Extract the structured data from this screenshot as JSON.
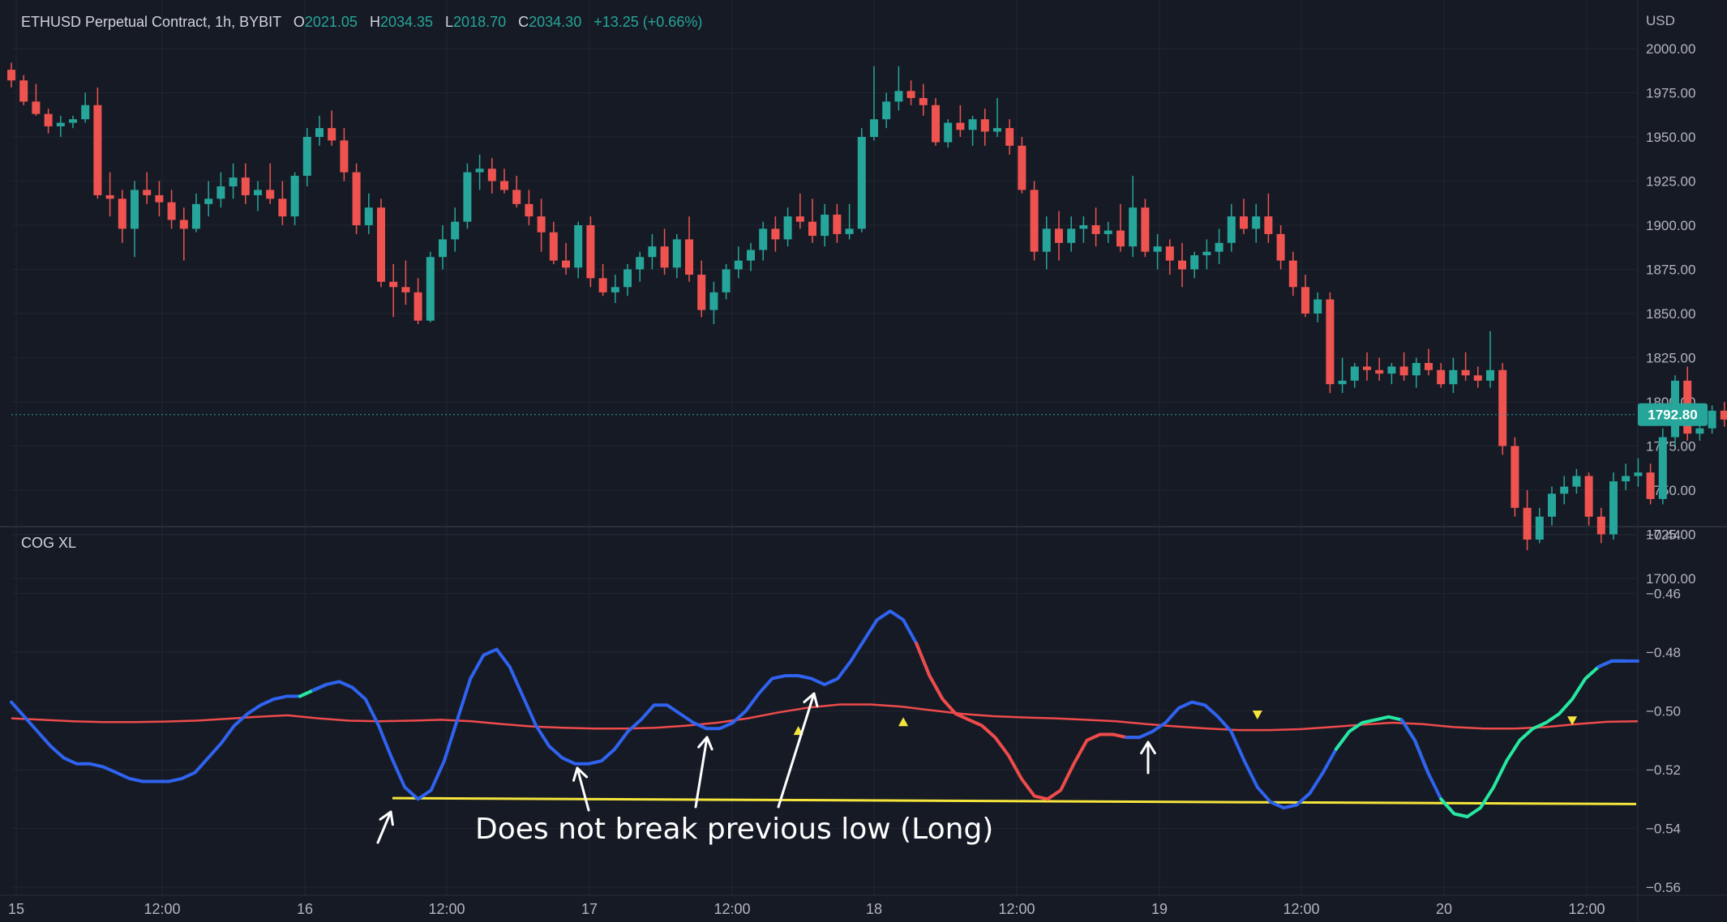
{
  "header": {
    "symbol": "ETHUSD Perpetual Contract, 1h, BYBIT",
    "o_label": "O",
    "o": "2021.05",
    "h_label": "H",
    "h": "2034.35",
    "l_label": "L",
    "l": "2018.70",
    "c_label": "C",
    "c": "2034.30",
    "change": "+13.25 (+0.66%)"
  },
  "indicator": {
    "title": "COG XL"
  },
  "annotation": "Does not break previous low (Long)",
  "colors": {
    "background": "#161a25",
    "grid": "#212531",
    "text": "#b2b5be",
    "up": "#26a69a",
    "down": "#ef5350",
    "cog_neutral": "#2f63f0",
    "cog_bull": "#26e8a0",
    "cog_bear": "#ef4b4b",
    "signal_line": "#ef4b4b",
    "support_line": "#f5e53b",
    "marker": "#f5e53b",
    "last_price_bg": "#26a69a"
  },
  "chart_data": [
    {
      "type": "candlestick",
      "title": "ETHUSD Perpetual Contract, 1h, BYBIT",
      "ylabel": "USD",
      "ylim": [
        1690,
        2010
      ],
      "y_ticks": [
        "2000.00",
        "1975.00",
        "1950.00",
        "1925.00",
        "1900.00",
        "1875.00",
        "1850.00",
        "1825.00",
        "1800.00",
        "1775.00",
        "1750.00",
        "1725.00",
        "1700.00"
      ],
      "last_price": "1792.80",
      "x_ticks": [
        "15",
        "12:00",
        "16",
        "12:00",
        "17",
        "12:00",
        "18",
        "12:00",
        "19",
        "12:00",
        "20",
        "12:00"
      ],
      "ohlc": [
        [
          1988,
          1992,
          1978,
          1982
        ],
        [
          1982,
          1985,
          1968,
          1970
        ],
        [
          1970,
          1980,
          1962,
          1963
        ],
        [
          1963,
          1966,
          1952,
          1956
        ],
        [
          1956,
          1962,
          1950,
          1958
        ],
        [
          1958,
          1962,
          1955,
          1960
        ],
        [
          1960,
          1975,
          1958,
          1968
        ],
        [
          1968,
          1978,
          1915,
          1917
        ],
        [
          1917,
          1930,
          1905,
          1915
        ],
        [
          1915,
          1920,
          1890,
          1898
        ],
        [
          1898,
          1925,
          1882,
          1920
        ],
        [
          1920,
          1930,
          1912,
          1917
        ],
        [
          1917,
          1925,
          1905,
          1913
        ],
        [
          1913,
          1920,
          1898,
          1903
        ],
        [
          1903,
          1910,
          1880,
          1898
        ],
        [
          1898,
          1918,
          1896,
          1912
        ],
        [
          1912,
          1925,
          1905,
          1915
        ],
        [
          1915,
          1930,
          1910,
          1922
        ],
        [
          1922,
          1935,
          1915,
          1927
        ],
        [
          1927,
          1935,
          1912,
          1917
        ],
        [
          1917,
          1925,
          1908,
          1920
        ],
        [
          1920,
          1935,
          1912,
          1915
        ],
        [
          1915,
          1925,
          1900,
          1905
        ],
        [
          1905,
          1930,
          1900,
          1928
        ],
        [
          1928,
          1955,
          1922,
          1950
        ],
        [
          1950,
          1962,
          1945,
          1955
        ],
        [
          1955,
          1965,
          1945,
          1948
        ],
        [
          1948,
          1955,
          1925,
          1930
        ],
        [
          1930,
          1935,
          1895,
          1900
        ],
        [
          1900,
          1918,
          1895,
          1910
        ],
        [
          1910,
          1915,
          1865,
          1868
        ],
        [
          1868,
          1878,
          1848,
          1865
        ],
        [
          1865,
          1880,
          1855,
          1862
        ],
        [
          1862,
          1870,
          1844,
          1846
        ],
        [
          1846,
          1885,
          1845,
          1882
        ],
        [
          1882,
          1900,
          1875,
          1892
        ],
        [
          1892,
          1910,
          1885,
          1902
        ],
        [
          1902,
          1935,
          1898,
          1930
        ],
        [
          1930,
          1940,
          1920,
          1932
        ],
        [
          1932,
          1938,
          1918,
          1925
        ],
        [
          1925,
          1932,
          1918,
          1920
        ],
        [
          1920,
          1928,
          1910,
          1912
        ],
        [
          1912,
          1920,
          1900,
          1905
        ],
        [
          1905,
          1915,
          1885,
          1896
        ],
        [
          1896,
          1902,
          1878,
          1880
        ],
        [
          1880,
          1890,
          1872,
          1876
        ],
        [
          1876,
          1902,
          1870,
          1900
        ],
        [
          1900,
          1905,
          1865,
          1870
        ],
        [
          1870,
          1878,
          1860,
          1862
        ],
        [
          1862,
          1872,
          1856,
          1865
        ],
        [
          1865,
          1878,
          1860,
          1875
        ],
        [
          1875,
          1885,
          1868,
          1882
        ],
        [
          1882,
          1895,
          1875,
          1888
        ],
        [
          1888,
          1898,
          1872,
          1876
        ],
        [
          1876,
          1895,
          1870,
          1892
        ],
        [
          1892,
          1905,
          1868,
          1872
        ],
        [
          1872,
          1880,
          1848,
          1852
        ],
        [
          1852,
          1868,
          1844,
          1862
        ],
        [
          1862,
          1878,
          1858,
          1875
        ],
        [
          1875,
          1888,
          1870,
          1880
        ],
        [
          1880,
          1890,
          1874,
          1886
        ],
        [
          1886,
          1902,
          1880,
          1898
        ],
        [
          1898,
          1905,
          1885,
          1892
        ],
        [
          1892,
          1910,
          1888,
          1905
        ],
        [
          1905,
          1918,
          1898,
          1902
        ],
        [
          1902,
          1915,
          1890,
          1894
        ],
        [
          1894,
          1912,
          1888,
          1906
        ],
        [
          1906,
          1912,
          1890,
          1895
        ],
        [
          1895,
          1912,
          1892,
          1898
        ],
        [
          1898,
          1955,
          1896,
          1950
        ],
        [
          1950,
          1990,
          1948,
          1960
        ],
        [
          1960,
          1975,
          1955,
          1970
        ],
        [
          1970,
          1990,
          1965,
          1976
        ],
        [
          1976,
          1982,
          1968,
          1972
        ],
        [
          1972,
          1980,
          1962,
          1968
        ],
        [
          1968,
          1972,
          1945,
          1947
        ],
        [
          1947,
          1960,
          1944,
          1958
        ],
        [
          1958,
          1968,
          1950,
          1954
        ],
        [
          1954,
          1962,
          1945,
          1960
        ],
        [
          1960,
          1966,
          1945,
          1953
        ],
        [
          1953,
          1972,
          1950,
          1955
        ],
        [
          1955,
          1960,
          1940,
          1945
        ],
        [
          1945,
          1950,
          1918,
          1920
        ],
        [
          1920,
          1925,
          1880,
          1885
        ],
        [
          1885,
          1905,
          1875,
          1898
        ],
        [
          1898,
          1908,
          1880,
          1890
        ],
        [
          1890,
          1905,
          1885,
          1898
        ],
        [
          1898,
          1905,
          1890,
          1900
        ],
        [
          1900,
          1910,
          1888,
          1895
        ],
        [
          1895,
          1902,
          1890,
          1897
        ],
        [
          1897,
          1912,
          1885,
          1888
        ],
        [
          1888,
          1928,
          1882,
          1910
        ],
        [
          1910,
          1915,
          1882,
          1885
        ],
        [
          1885,
          1895,
          1875,
          1888
        ],
        [
          1888,
          1892,
          1872,
          1880
        ],
        [
          1880,
          1890,
          1865,
          1875
        ],
        [
          1875,
          1885,
          1870,
          1883
        ],
        [
          1883,
          1892,
          1875,
          1885
        ],
        [
          1885,
          1898,
          1878,
          1890
        ],
        [
          1890,
          1912,
          1885,
          1905
        ],
        [
          1905,
          1915,
          1895,
          1898
        ],
        [
          1898,
          1912,
          1890,
          1905
        ],
        [
          1905,
          1918,
          1890,
          1895
        ],
        [
          1895,
          1900,
          1875,
          1880
        ],
        [
          1880,
          1885,
          1860,
          1865
        ],
        [
          1865,
          1872,
          1848,
          1850
        ],
        [
          1850,
          1862,
          1845,
          1858
        ],
        [
          1858,
          1862,
          1805,
          1810
        ],
        [
          1810,
          1825,
          1805,
          1812
        ],
        [
          1812,
          1822,
          1808,
          1820
        ],
        [
          1820,
          1828,
          1812,
          1818
        ],
        [
          1818,
          1825,
          1812,
          1816
        ],
        [
          1816,
          1822,
          1810,
          1820
        ],
        [
          1820,
          1828,
          1812,
          1815
        ],
        [
          1815,
          1825,
          1808,
          1822
        ],
        [
          1822,
          1830,
          1815,
          1818
        ],
        [
          1818,
          1822,
          1808,
          1810
        ],
        [
          1810,
          1825,
          1805,
          1818
        ],
        [
          1818,
          1828,
          1812,
          1815
        ],
        [
          1815,
          1820,
          1808,
          1812
        ],
        [
          1812,
          1840,
          1808,
          1818
        ],
        [
          1818,
          1822,
          1770,
          1775
        ],
        [
          1775,
          1780,
          1735,
          1740
        ],
        [
          1740,
          1750,
          1716,
          1722
        ],
        [
          1722,
          1740,
          1720,
          1735
        ],
        [
          1735,
          1752,
          1730,
          1748
        ],
        [
          1748,
          1758,
          1742,
          1752
        ],
        [
          1752,
          1762,
          1748,
          1758
        ],
        [
          1758,
          1760,
          1730,
          1735
        ],
        [
          1735,
          1740,
          1720,
          1725
        ],
        [
          1725,
          1760,
          1722,
          1755
        ],
        [
          1755,
          1765,
          1750,
          1758
        ],
        [
          1758,
          1768,
          1752,
          1760
        ],
        [
          1760,
          1765,
          1742,
          1745
        ],
        [
          1745,
          1785,
          1742,
          1780
        ],
        [
          1780,
          1815,
          1775,
          1812
        ],
        [
          1812,
          1820,
          1778,
          1782
        ],
        [
          1782,
          1790,
          1778,
          1785
        ],
        [
          1785,
          1798,
          1782,
          1795
        ],
        [
          1795,
          1800,
          1786,
          1790
        ],
        [
          1790,
          1796,
          1788,
          1793
        ]
      ]
    },
    {
      "type": "line",
      "title": "COG XL",
      "ylim": [
        -0.56,
        -0.44
      ],
      "y_ticks": [
        "-0.44",
        "-0.46",
        "-0.48",
        "-0.50",
        "-0.52",
        "-0.54",
        "-0.56"
      ],
      "series": [
        {
          "values": [
            -0.497,
            -0.502,
            -0.507,
            -0.512,
            -0.516,
            -0.518,
            -0.518,
            -0.519,
            -0.521,
            -0.523,
            -0.524,
            -0.524,
            -0.524,
            -0.523,
            -0.521,
            -0.516,
            -0.511,
            -0.505,
            -0.501,
            -0.498,
            -0.496,
            -0.495,
            -0.495,
            -0.493,
            -0.491,
            -0.49,
            -0.492,
            -0.496,
            -0.505,
            -0.516,
            -0.526,
            -0.53,
            -0.527,
            -0.517,
            -0.503,
            -0.489,
            -0.481,
            -0.479,
            -0.485,
            -0.495,
            -0.505,
            -0.512,
            -0.516,
            -0.518,
            -0.518,
            -0.517,
            -0.513,
            -0.507,
            -0.503,
            -0.498,
            -0.498,
            -0.501,
            -0.504,
            -0.506,
            -0.506,
            -0.504,
            -0.5,
            -0.494,
            -0.489,
            -0.488,
            -0.488,
            -0.489,
            -0.491,
            -0.489,
            -0.483,
            -0.476,
            -0.469,
            -0.466,
            -0.469,
            -0.477,
            -0.488,
            -0.496,
            -0.501,
            -0.503,
            -0.505,
            -0.509,
            -0.515,
            -0.523,
            -0.529,
            -0.53,
            -0.527,
            -0.518,
            -0.51,
            -0.508,
            -0.508,
            -0.509,
            -0.509,
            -0.507,
            -0.504,
            -0.499,
            -0.497,
            -0.498,
            -0.502,
            -0.507,
            -0.517,
            -0.526,
            -0.531,
            -0.533,
            -0.532,
            -0.528,
            -0.521,
            -0.513,
            -0.507,
            -0.504,
            -0.503,
            -0.502,
            -0.503,
            -0.51,
            -0.521,
            -0.53,
            -0.535,
            -0.536,
            -0.533,
            -0.526,
            -0.517,
            -0.51,
            -0.506,
            -0.504,
            -0.501,
            -0.496,
            -0.489,
            -0.485,
            -0.483,
            -0.483,
            -0.483
          ],
          "segment_colors": [
            [
              0,
              23,
              "neutral"
            ],
            [
              23,
              23,
              "bull"
            ],
            [
              24,
              70,
              "neutral"
            ],
            [
              70,
              85,
              "bear"
            ],
            [
              86,
              102,
              "neutral"
            ],
            [
              102,
              107,
              "bull"
            ],
            [
              107,
              110,
              "neutral"
            ],
            [
              110,
              122,
              "bull"
            ],
            [
              122,
              140,
              "neutral"
            ]
          ]
        },
        {
          "values": [
            -0.5025,
            -0.503,
            -0.5035,
            -0.5038,
            -0.5038,
            -0.5036,
            -0.5033,
            -0.5027,
            -0.502,
            -0.5015,
            -0.5025,
            -0.5033,
            -0.5035,
            -0.5033,
            -0.503,
            -0.5035,
            -0.5045,
            -0.5053,
            -0.5057,
            -0.506,
            -0.506,
            -0.5057,
            -0.505,
            -0.504,
            -0.5025,
            -0.5005,
            -0.4988,
            -0.4978,
            -0.4978,
            -0.4985,
            -0.4998,
            -0.501,
            -0.5018,
            -0.5022,
            -0.5025,
            -0.503,
            -0.5035,
            -0.5045,
            -0.5053,
            -0.506,
            -0.5065,
            -0.5065,
            -0.5062,
            -0.5055,
            -0.5047,
            -0.504,
            -0.5045,
            -0.5055,
            -0.506,
            -0.506,
            -0.5055,
            -0.5045,
            -0.5037,
            -0.5035
          ]
        }
      ],
      "support_line": {
        "from": -0.5297,
        "to": -0.5317
      },
      "markers": [
        {
          "index": 60,
          "value": -0.5065,
          "shape": "up"
        },
        {
          "index": 68,
          "value": -0.5035,
          "shape": "up"
        },
        {
          "index": 95,
          "value": -0.5015,
          "shape": "down"
        },
        {
          "index": 119,
          "value": -0.5035,
          "shape": "down"
        }
      ]
    }
  ]
}
